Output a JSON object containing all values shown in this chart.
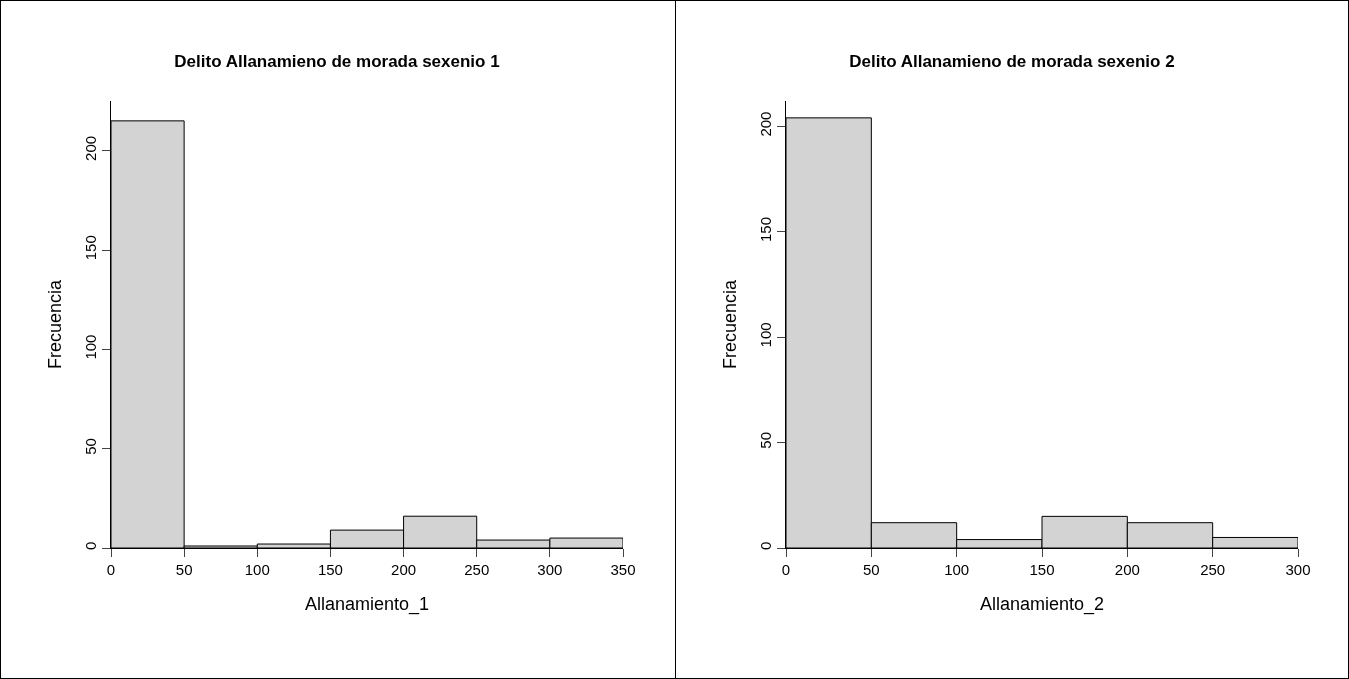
{
  "chart_data": [
    {
      "type": "histogram",
      "title": "Delito Allanamieno de morada sexenio 1",
      "xlabel": "Allanamiento_1",
      "ylabel": "Frecuencia",
      "bins": [
        0,
        50,
        100,
        150,
        200,
        250,
        300,
        350
      ],
      "values": [
        215,
        1,
        2,
        9,
        16,
        4,
        5
      ],
      "color": "#d3d3d3",
      "xlim": [
        0,
        350
      ],
      "xticks": [
        0,
        50,
        100,
        150,
        200,
        250,
        300,
        350
      ],
      "ylim": [
        0,
        225
      ],
      "yticks": [
        0,
        50,
        100,
        150,
        200
      ]
    },
    {
      "type": "histogram",
      "title": "Delito Allanamieno de morada sexenio 2",
      "xlabel": "Allanamiento_2",
      "ylabel": "Frecuencia",
      "bins": [
        0,
        50,
        100,
        150,
        200,
        250,
        300
      ],
      "values": [
        204,
        12,
        4,
        15,
        12,
        5
      ],
      "color": "#d3d3d3",
      "xlim": [
        0,
        300
      ],
      "xticks": [
        0,
        50,
        100,
        150,
        200,
        250,
        300
      ],
      "ylim": [
        0,
        212
      ],
      "yticks": [
        0,
        50,
        100,
        150,
        200
      ]
    }
  ]
}
